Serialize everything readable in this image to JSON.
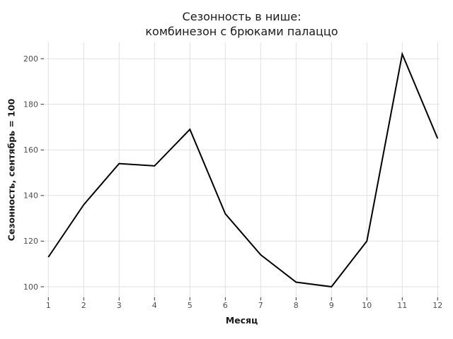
{
  "title": {
    "line1": "Сезонность в нише:",
    "line2": "комбинезон с брюками палаццо"
  },
  "chart_data": {
    "type": "line",
    "title": "Сезонность в нише:\nкомбинезон с брюками палаццо",
    "xlabel": "Месяц",
    "ylabel": "Сезонность, сентябрь = 100",
    "x": [
      1,
      2,
      3,
      4,
      5,
      6,
      7,
      8,
      9,
      10,
      11,
      12
    ],
    "x_tick_labels": [
      "1",
      "2",
      "3",
      "4",
      "5",
      "6",
      "7",
      "8",
      "9",
      "10",
      "11",
      "12"
    ],
    "y_ticks": [
      100,
      120,
      140,
      160,
      180,
      200
    ],
    "y_tick_labels": [
      "100",
      "120",
      "140",
      "160",
      "180",
      "200"
    ],
    "series": [
      {
        "name": "Сезонность, сентябрь = 100",
        "values": [
          113,
          136,
          154,
          153,
          169,
          132,
          114,
          102,
          100,
          120,
          202,
          165
        ]
      }
    ],
    "xlim": [
      1,
      12
    ],
    "ylim": [
      95,
      207
    ],
    "grid": true,
    "legend": "none"
  },
  "colors": {
    "background": "#ffffff",
    "line": "#000000",
    "grid": "#e0e0e0",
    "tick_mark": "#333333",
    "tick_label": "#4d4d4d",
    "text": "#1a1a1a"
  }
}
